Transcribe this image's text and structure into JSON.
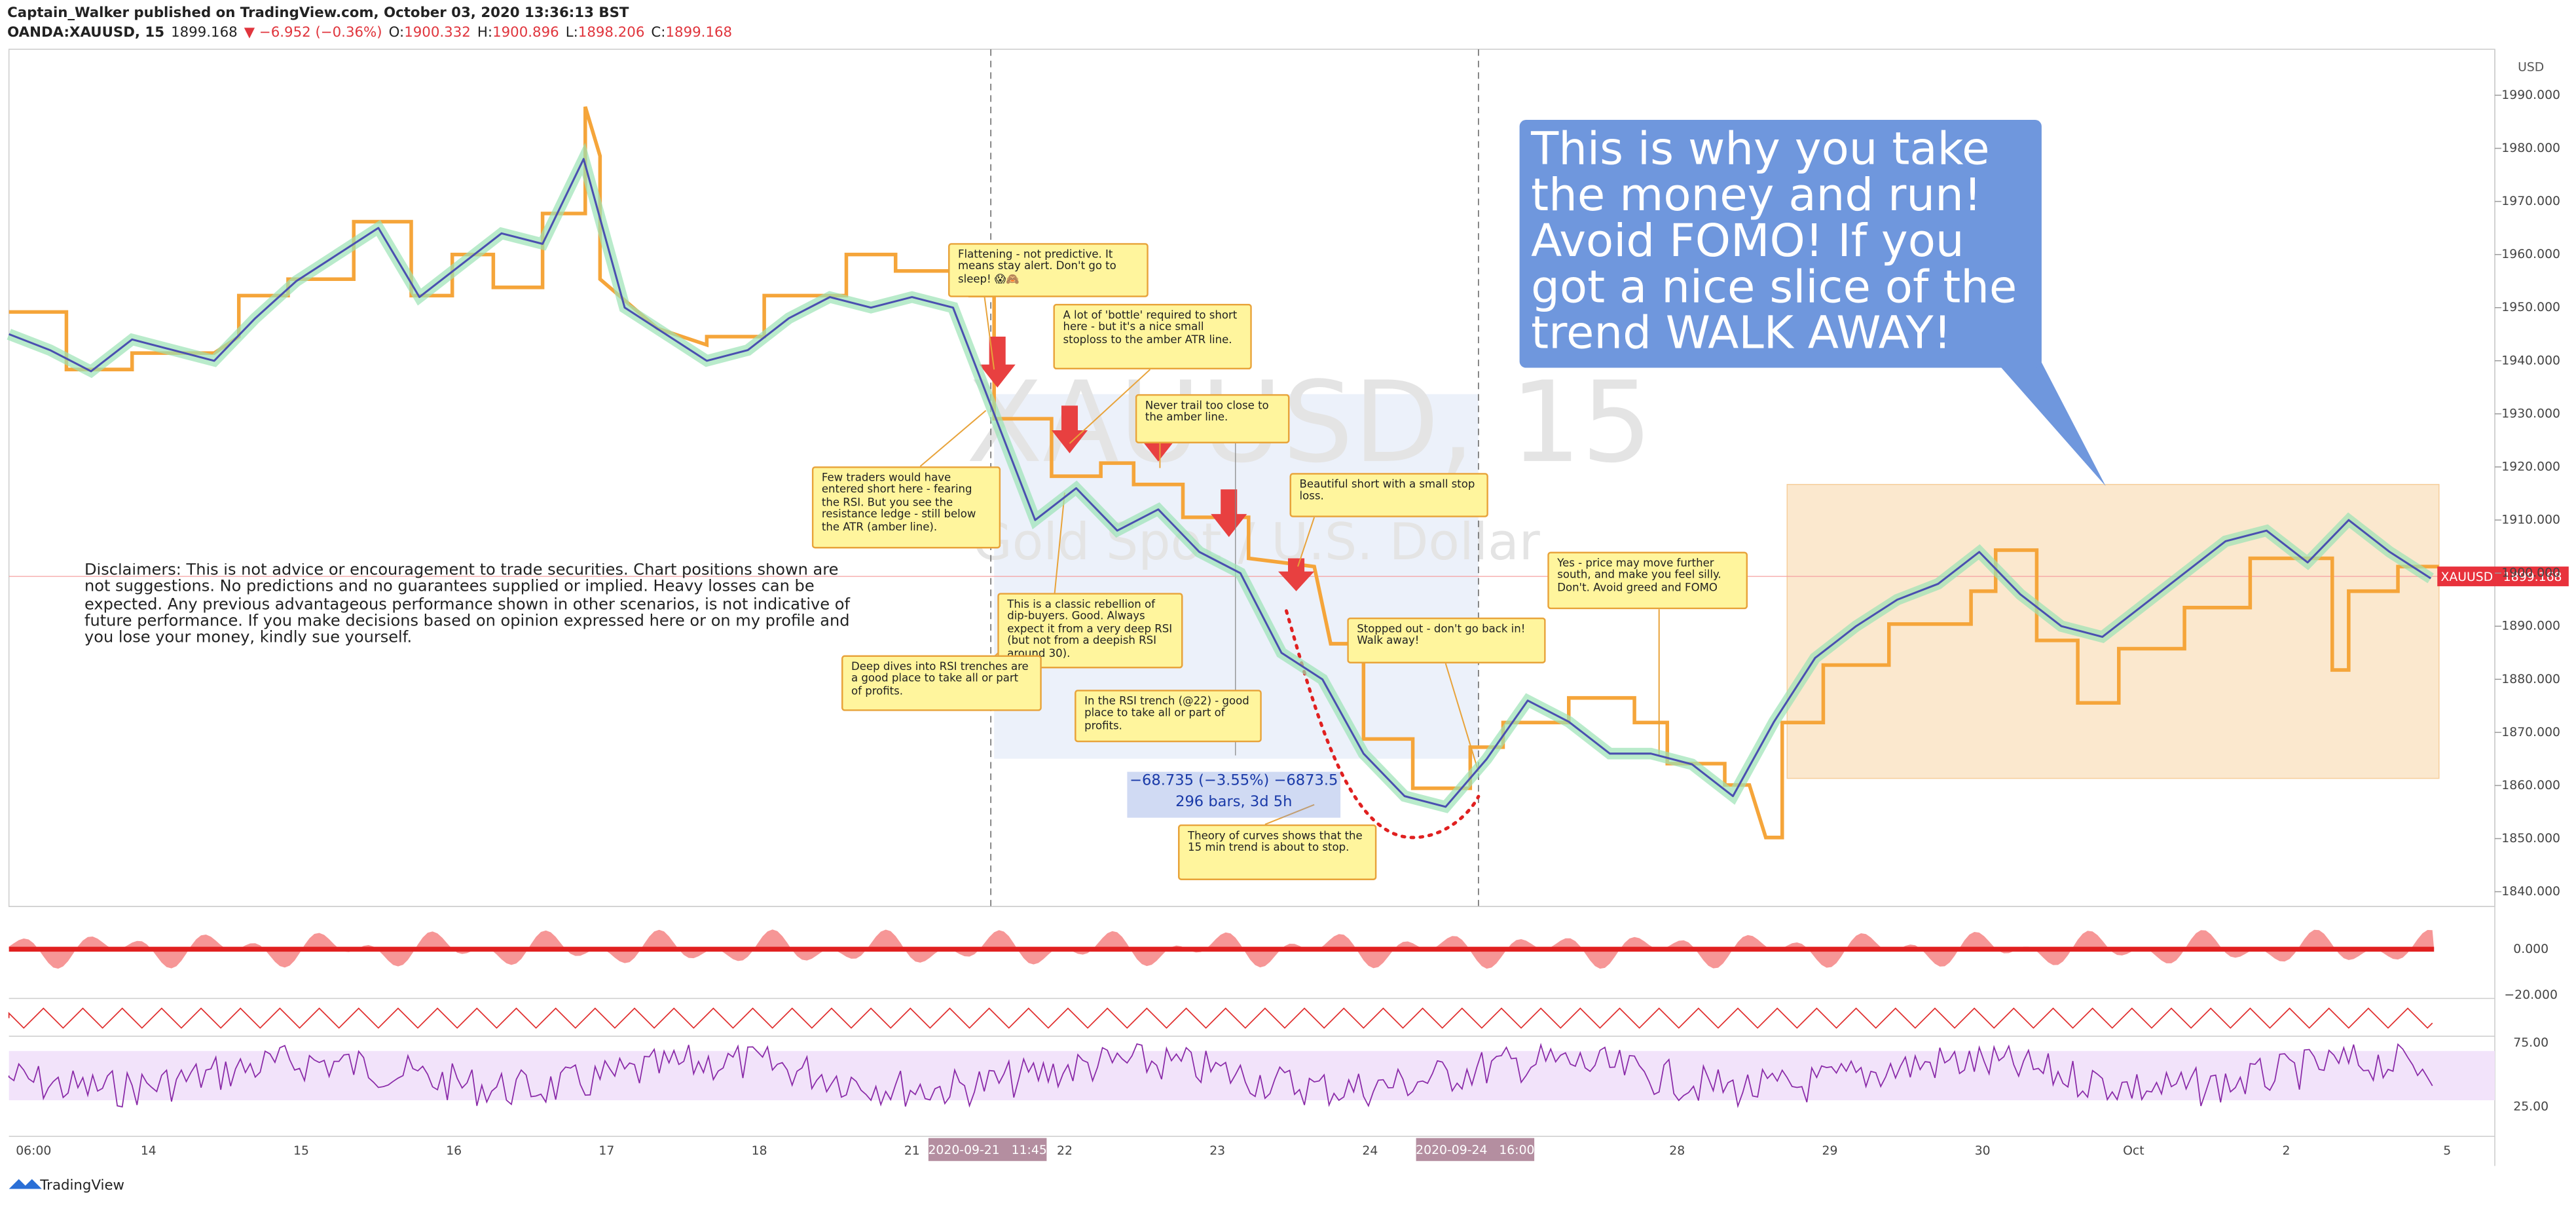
{
  "header": {
    "publisher": "Captain_Walker published on TradingView.com, October 03, 2020 13:36:13 BST",
    "symbol": "OANDA:XAUUSD, 15",
    "last": "1899.168",
    "change": "▼ −6.952 (−0.36%)",
    "ohlc": [
      {
        "label": "O:",
        "value": "1900.332"
      },
      {
        "label": "H:",
        "value": "1900.896"
      },
      {
        "label": "L:",
        "value": "1898.206"
      },
      {
        "label": "C:",
        "value": "1899.168"
      }
    ]
  },
  "price_axis": {
    "currency": "USD",
    "ticks": [
      "1840.000",
      "1850.000",
      "1860.000",
      "1870.000",
      "1880.000",
      "1890.000",
      "1900.000",
      "1910.000",
      "1920.000",
      "1930.000",
      "1940.000",
      "1950.000",
      "1960.000",
      "1970.000",
      "1980.000",
      "1990.000"
    ]
  },
  "last_price": {
    "symbol": "XAUUSD",
    "price": "1899.168"
  },
  "price_trace": [
    1945,
    1942,
    1938,
    1944,
    1942,
    1940,
    1948,
    1955,
    1960,
    1965,
    1952,
    1958,
    1964,
    1962,
    1978,
    1950,
    1945,
    1940,
    1942,
    1948,
    1952,
    1950,
    1952,
    1950,
    1930,
    1910,
    1916,
    1908,
    1912,
    1904,
    1900,
    1885,
    1880,
    1866,
    1858,
    1856,
    1865,
    1876,
    1872,
    1866,
    1866,
    1864,
    1858,
    1872,
    1884,
    1890,
    1895,
    1898,
    1904,
    1896,
    1890,
    1888,
    1894,
    1900,
    1906,
    1908,
    1902,
    1910,
    1904,
    1899
  ],
  "time_axis": [
    "06:00",
    "14",
    "15",
    "16",
    "17",
    "18",
    "21",
    "22",
    "23",
    "24",
    "28",
    "29",
    "30",
    "Oct",
    "2",
    "5"
  ],
  "time_markers": [
    "2020-09-21   11:45",
    "2020-09-24   16:00"
  ],
  "watermark": {
    "symbol": "XAUUSD, 15",
    "name": "Gold Spot / U.S. Dollar"
  },
  "callout": "This is why you take the money and run! Avoid FOMO! If you got a nice slice of the trend WALK AWAY!",
  "annotations": [
    "Flattening - not predictive. It means stay alert. Don't go to sleep! 😱🙈",
    "A lot of 'bottle' required to short here - but it's a nice small stoploss to the amber ATR line.",
    "Never trail too close to the amber line.",
    "Beautiful short with a small stop loss.",
    "Few traders would have entered short here - fearing the RSI. But you see the resistance ledge - still below the ATR (amber line).",
    "This is a classic rebellion of dip-buyers. Good. Always expect it from a very deep RSI (but not from a deepish RSI around 30).",
    "Deep dives into RSI trenches are a good place to take all or part of profits.",
    "In the RSI trench (@22) - good place to take all or part of profits.",
    "Stopped out - don't go back in! Walk away!",
    "Yes - price may move further south, and make you feel silly. Don't. Avoid greed and FOMO",
    "Theory of curves shows that the 15 min trend is about to stop."
  ],
  "measure": [
    "−68.735 (−3.55%) −6873.5",
    "296 bars, 3d 5h"
  ],
  "disclaimer": [
    "Disclaimers: This is not advice or encouragement to trade securities. Chart positions shown are",
    "not suggestions. No predictions and no guarantees supplied or implied. Heavy losses can be",
    "expected. Any previous advantageous performance shown in other scenarios, is not indicative of",
    "future performance.  If you make decisions based on opinion expressed here or on my profile and",
    "you lose your money, kindly sue yourself."
  ],
  "indicators": {
    "osc_ticks": [
      "0.000",
      "−20.000"
    ],
    "rsi_ticks": [
      "75.00",
      "25.00"
    ]
  },
  "footer": "TradingView"
}
